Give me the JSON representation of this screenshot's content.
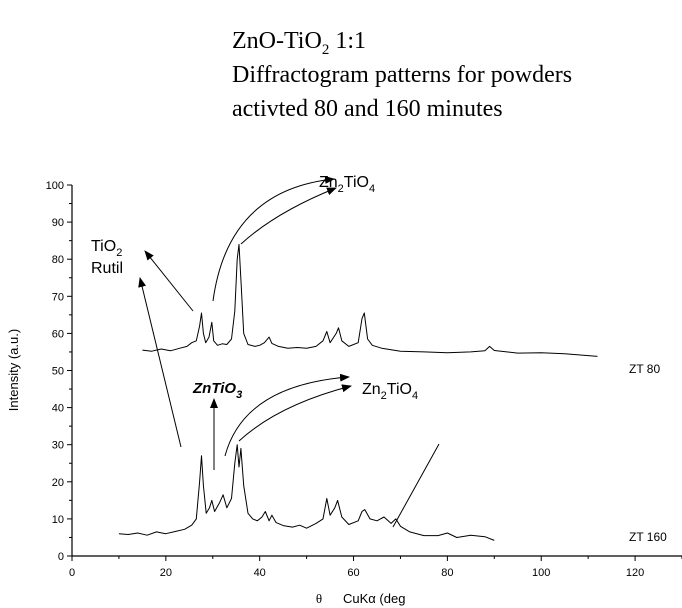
{
  "chart_data": {
    "type": "line",
    "title": {
      "line1_main": "ZnO-TiO",
      "line1_sub": "2",
      "line1_tail": " 1:1",
      "line2": "Diffractogram patterns for powders",
      "line3": "activted 80 and 160 minutes"
    },
    "xlabel": {
      "theta": "θ",
      "main": "CuKα  (deg"
    },
    "ylabel": "Intensity (a.u.)",
    "xlim": [
      0,
      130
    ],
    "ylim": [
      0,
      100
    ],
    "xticks": [
      0,
      20,
      40,
      60,
      80,
      100,
      120
    ],
    "yticks": [
      0,
      10,
      20,
      30,
      40,
      50,
      60,
      70,
      80,
      90,
      100
    ],
    "grid": false,
    "series": [
      {
        "name": "ZT 80",
        "points": [
          [
            15,
            55.5
          ],
          [
            17,
            55.2
          ],
          [
            19,
            55.8
          ],
          [
            21,
            55.3
          ],
          [
            23,
            56
          ],
          [
            24.5,
            56.5
          ],
          [
            25.5,
            57.5
          ],
          [
            26.5,
            58
          ],
          [
            27.2,
            62
          ],
          [
            27.6,
            65.5
          ],
          [
            28,
            60
          ],
          [
            28.5,
            57.5
          ],
          [
            29.2,
            59
          ],
          [
            29.8,
            63
          ],
          [
            30.2,
            58
          ],
          [
            31,
            56.8
          ],
          [
            32,
            57.2
          ],
          [
            33,
            57
          ],
          [
            34,
            58.5
          ],
          [
            34.7,
            66
          ],
          [
            35.2,
            80
          ],
          [
            35.6,
            84
          ],
          [
            36.1,
            72
          ],
          [
            36.6,
            60
          ],
          [
            37.5,
            57
          ],
          [
            39,
            56.5
          ],
          [
            40,
            56.8
          ],
          [
            41,
            57.5
          ],
          [
            42,
            59
          ],
          [
            42.6,
            57.3
          ],
          [
            44,
            56.5
          ],
          [
            46,
            56
          ],
          [
            48,
            56.2
          ],
          [
            50,
            56
          ],
          [
            52,
            56.5
          ],
          [
            53.5,
            58
          ],
          [
            54.3,
            60.5
          ],
          [
            55,
            57.5
          ],
          [
            56.3,
            60
          ],
          [
            56.8,
            61.5
          ],
          [
            57.5,
            58
          ],
          [
            59,
            56.5
          ],
          [
            61,
            57.5
          ],
          [
            61.8,
            64
          ],
          [
            62.3,
            65.5
          ],
          [
            63,
            58.5
          ],
          [
            64,
            56.8
          ],
          [
            66,
            56
          ],
          [
            70,
            55.2
          ],
          [
            75,
            55
          ],
          [
            80,
            54.8
          ],
          [
            85,
            55
          ],
          [
            88,
            55.3
          ],
          [
            89,
            56.5
          ],
          [
            90,
            55.4
          ],
          [
            95,
            54.7
          ],
          [
            100,
            54.8
          ],
          [
            105,
            54.5
          ],
          [
            108,
            54.2
          ],
          [
            112,
            53.8
          ]
        ]
      },
      {
        "name": "ZT 160",
        "points": [
          [
            10,
            6
          ],
          [
            12,
            5.8
          ],
          [
            14,
            6.2
          ],
          [
            16,
            5.6
          ],
          [
            18,
            6.5
          ],
          [
            20,
            6
          ],
          [
            22,
            6.6
          ],
          [
            24,
            7.2
          ],
          [
            25.5,
            8.3
          ],
          [
            26.5,
            10
          ],
          [
            27.2,
            20
          ],
          [
            27.6,
            27
          ],
          [
            28,
            19
          ],
          [
            28.6,
            11.5
          ],
          [
            29.3,
            13
          ],
          [
            29.8,
            15
          ],
          [
            30.4,
            12
          ],
          [
            31.5,
            14.5
          ],
          [
            32.2,
            16.5
          ],
          [
            33,
            13
          ],
          [
            34,
            15.5
          ],
          [
            34.7,
            25
          ],
          [
            35.2,
            30
          ],
          [
            35.6,
            24
          ],
          [
            36,
            29
          ],
          [
            36.6,
            19
          ],
          [
            37.5,
            11.5
          ],
          [
            38.5,
            10
          ],
          [
            39.5,
            9.5
          ],
          [
            40.5,
            10.5
          ],
          [
            41.2,
            12
          ],
          [
            42,
            9.5
          ],
          [
            42.6,
            11
          ],
          [
            43.5,
            9
          ],
          [
            45,
            8.2
          ],
          [
            47,
            7.8
          ],
          [
            48.5,
            8.3
          ],
          [
            50,
            7.5
          ],
          [
            52,
            8.8
          ],
          [
            53.5,
            10
          ],
          [
            54.3,
            15.5
          ],
          [
            55,
            11
          ],
          [
            56,
            13
          ],
          [
            56.6,
            15
          ],
          [
            57.5,
            10.5
          ],
          [
            59,
            8.5
          ],
          [
            61,
            9.5
          ],
          [
            61.8,
            12
          ],
          [
            62.4,
            12.5
          ],
          [
            63.5,
            10
          ],
          [
            65,
            9.5
          ],
          [
            66.5,
            10.5
          ],
          [
            68,
            8.8
          ],
          [
            69,
            10
          ],
          [
            70,
            8
          ],
          [
            72,
            6.5
          ],
          [
            75,
            5.5
          ],
          [
            78,
            5.5
          ],
          [
            80,
            6.2
          ],
          [
            82,
            5
          ],
          [
            85,
            5.6
          ],
          [
            88,
            5.2
          ],
          [
            90,
            4.2
          ]
        ]
      }
    ],
    "annotations": {
      "rutile_line1_main": "TiO",
      "rutile_line1_sub": "2",
      "rutile_line2": "Rutil",
      "zn2tio4_main": "Zn",
      "zn2tio4_sub1": "2",
      "zn2tio4_mid": "TiO",
      "zn2tio4_sub2": "4",
      "zntio3_main": "ZnTiO",
      "zntio3_sub": "3"
    },
    "colors": {
      "line": "#000000",
      "text": "#000000",
      "background": "#ffffff"
    }
  }
}
